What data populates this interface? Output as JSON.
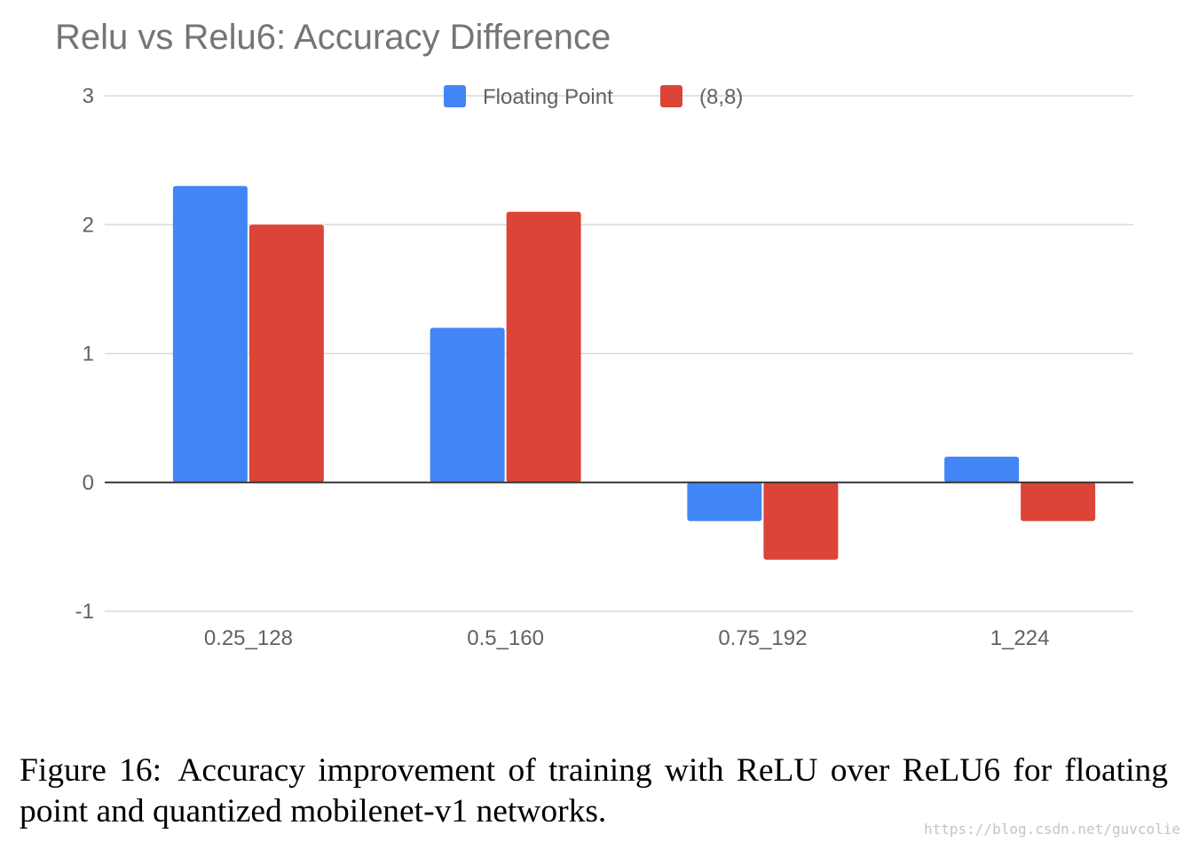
{
  "chart_data": {
    "type": "bar",
    "title": "Relu vs Relu6: Accuracy Difference",
    "categories": [
      "0.25_128",
      "0.5_160",
      "0.75_192",
      "1_224"
    ],
    "series": [
      {
        "name": "Floating Point",
        "color": "#4285f4",
        "values": [
          2.3,
          1.2,
          -0.3,
          0.2
        ]
      },
      {
        "name": "(8,8)",
        "color": "#db4437",
        "values": [
          2.0,
          2.1,
          -0.6,
          -0.3
        ]
      }
    ],
    "yticks": [
      "3",
      "2",
      "1",
      "0",
      "-1"
    ],
    "ylim": [
      -1,
      3
    ],
    "grid": true,
    "legend": "top-center",
    "xlabel": "",
    "ylabel": ""
  },
  "caption": {
    "label": "Figure 16:",
    "text": "Accuracy improvement of training with ReLU over ReLU6 for floating point and quantized mobilenet-v1 networks."
  },
  "watermark": "https://blog.csdn.net/guvcolie"
}
